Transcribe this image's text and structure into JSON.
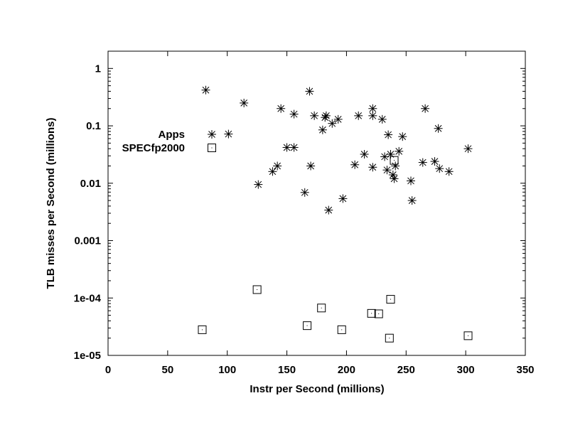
{
  "chart_data": {
    "type": "scatter",
    "xlabel": "Instr per Second (millions)",
    "ylabel": "TLB misses per Second (millions)",
    "xlim": [
      0,
      350
    ],
    "ylim": [
      1e-05,
      2
    ],
    "yscale": "log",
    "xticks": [
      0,
      50,
      100,
      150,
      200,
      250,
      300,
      350
    ],
    "xtick_labels": [
      "0",
      "50",
      "100",
      "150",
      "200",
      "250",
      "300",
      "350"
    ],
    "yticks": [
      1e-05,
      0.0001,
      0.001,
      0.01,
      0.1,
      1
    ],
    "ytick_labels": [
      "1e-05",
      "1e-04",
      "0.001",
      "0.01",
      "0.1",
      "1"
    ],
    "grid": false,
    "legend_position": "top-left",
    "series": [
      {
        "name": "Apps",
        "marker": "asterisk",
        "points": [
          [
            82,
            0.42
          ],
          [
            101,
            0.072
          ],
          [
            114,
            0.25
          ],
          [
            126,
            0.0095
          ],
          [
            138,
            0.016
          ],
          [
            142,
            0.02
          ],
          [
            145,
            0.2
          ],
          [
            150,
            0.042
          ],
          [
            156,
            0.042
          ],
          [
            156,
            0.16
          ],
          [
            165,
            0.0069
          ],
          [
            169,
            0.4
          ],
          [
            170,
            0.02
          ],
          [
            173,
            0.15
          ],
          [
            180,
            0.085
          ],
          [
            182,
            0.14
          ],
          [
            183,
            0.15
          ],
          [
            185,
            0.0034
          ],
          [
            188,
            0.11
          ],
          [
            193,
            0.13
          ],
          [
            197,
            0.0054
          ],
          [
            207,
            0.021
          ],
          [
            210,
            0.15
          ],
          [
            215,
            0.032
          ],
          [
            222,
            0.2
          ],
          [
            222,
            0.15
          ],
          [
            222,
            0.019
          ],
          [
            230,
            0.13
          ],
          [
            232,
            0.029
          ],
          [
            234,
            0.017
          ],
          [
            235,
            0.07
          ],
          [
            237,
            0.032
          ],
          [
            239,
            0.014
          ],
          [
            240,
            0.012
          ],
          [
            241,
            0.02
          ],
          [
            244,
            0.036
          ],
          [
            247,
            0.065
          ],
          [
            254,
            0.011
          ],
          [
            255,
            0.005
          ],
          [
            264,
            0.023
          ],
          [
            266,
            0.2
          ],
          [
            274,
            0.024
          ],
          [
            277,
            0.09
          ],
          [
            278,
            0.018
          ],
          [
            286,
            0.016
          ],
          [
            302,
            0.04
          ]
        ]
      },
      {
        "name": "SPECfp2000",
        "marker": "square",
        "points": [
          [
            79,
            2.8e-05
          ],
          [
            125,
            0.00014
          ],
          [
            167,
            3.3e-05
          ],
          [
            179,
            6.7e-05
          ],
          [
            196,
            2.8e-05
          ],
          [
            221,
            5.4e-05
          ],
          [
            227,
            5.3e-05
          ],
          [
            236,
            2e-05
          ],
          [
            237,
            9.5e-05
          ],
          [
            240,
            0.025
          ],
          [
            302,
            2.2e-05
          ]
        ]
      }
    ]
  }
}
